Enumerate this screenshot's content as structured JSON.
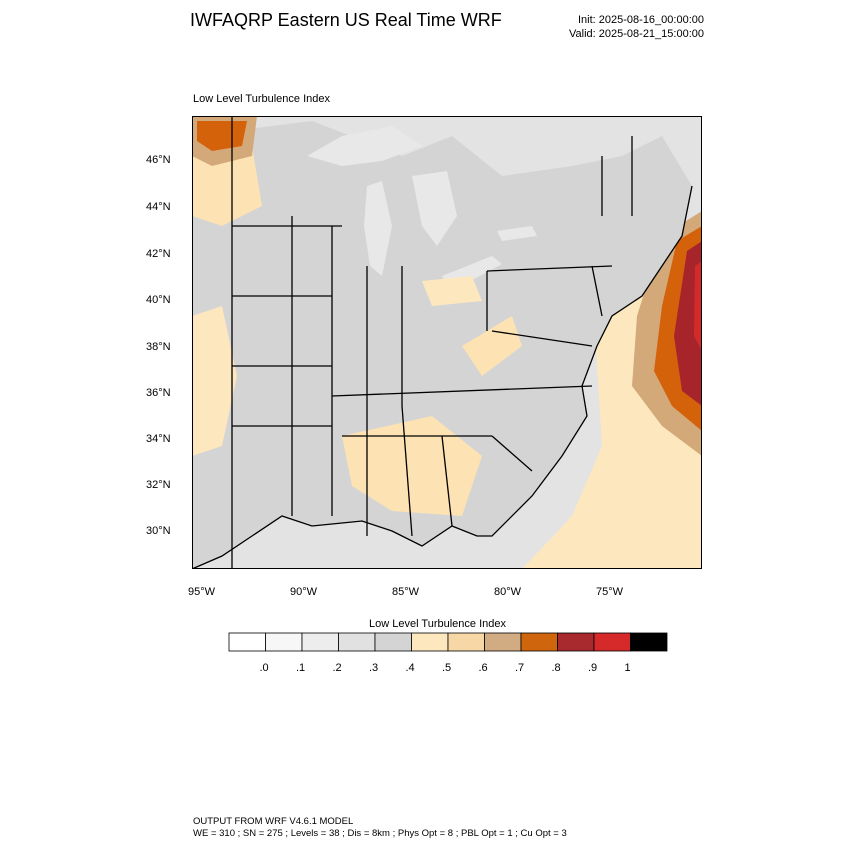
{
  "header": {
    "title": "IWFAQRP Eastern US Real Time WRF",
    "init": "Init: 2025-08-16_00:00:00",
    "valid": "Valid: 2025-08-21_15:00:00",
    "subtitle": "Low Level Turbulence Index"
  },
  "map": {
    "lat_labels": [
      "46°N",
      "44°N",
      "42°N",
      "40°N",
      "38°N",
      "36°N",
      "34°N",
      "32°N",
      "30°N"
    ],
    "lon_labels": [
      "95°W",
      "90°W",
      "85°W",
      "80°W",
      "75°W"
    ],
    "colors": {
      "land_gray": "#d4d4d4",
      "water_gray": "#e6e6e6",
      "light_orange": "#fde2b3",
      "tan": "#d4a97a",
      "orange": "#d4620b",
      "dark_red": "#a8242b",
      "red": "#d42a2a"
    }
  },
  "colorbar": {
    "title": "Low Level Turbulence Index",
    "colors": [
      "#ffffff",
      "#f7f7f7",
      "#ededed",
      "#e1e1e1",
      "#d4d4d4",
      "#fde7bf",
      "#f7d7a6",
      "#d1ac82",
      "#cf660d",
      "#a8292e",
      "#d62a2a",
      "#000000"
    ],
    "labels": [
      ".0",
      ".1",
      ".2",
      ".3",
      ".4",
      ".5",
      ".6",
      ".7",
      ".8",
      ".9",
      "1"
    ]
  },
  "footer": {
    "line1": "OUTPUT FROM WRF V4.6.1 MODEL",
    "line2": "WE = 310 ; SN = 275 ; Levels = 38 ; Dis = 8km ; Phys Opt = 8 ; PBL Opt = 1 ; Cu Opt = 3"
  }
}
